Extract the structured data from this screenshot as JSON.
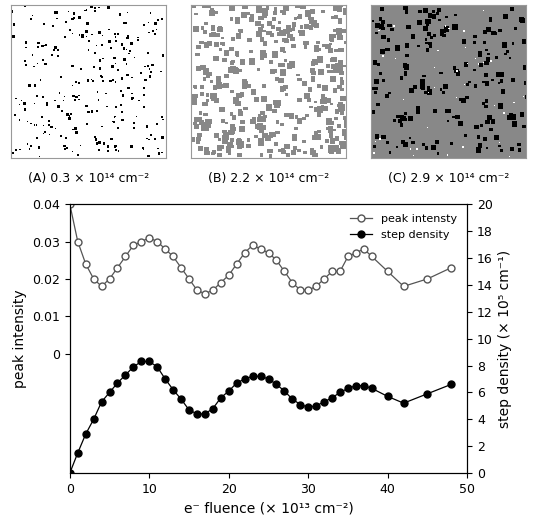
{
  "panels": [
    {
      "label": "(A) 0.3 × 10¹⁴ cm⁻²"
    },
    {
      "label": "(B) 2.2 × 10¹⁴ cm⁻²"
    },
    {
      "label": "(C) 2.9 × 10¹⁴ cm⁻²"
    }
  ],
  "chart_data": {
    "type": "line",
    "x_label": "e⁻ fluence (× 10¹³ cm⁻²)",
    "y_label": "peak intensity",
    "y2_label": "step density (× 10⁵ cm⁻¹)",
    "x": [
      0,
      1,
      2,
      3,
      4,
      5,
      6,
      7,
      8,
      9,
      10,
      11,
      12,
      13,
      14,
      15,
      16,
      17,
      18,
      19,
      20,
      21,
      22,
      23,
      24,
      25,
      26,
      27,
      28,
      29,
      30,
      31,
      32,
      33,
      34,
      35,
      36,
      37,
      38,
      40,
      42,
      45,
      48
    ],
    "series": [
      {
        "name": "peak intensty",
        "color": "#555555",
        "marker": "open_circle",
        "values": [
          0.04,
          0.03,
          0.024,
          0.02,
          0.018,
          0.02,
          0.023,
          0.026,
          0.029,
          0.03,
          0.031,
          0.03,
          0.028,
          0.026,
          0.023,
          0.02,
          0.017,
          0.016,
          0.017,
          0.019,
          0.021,
          0.024,
          0.027,
          0.029,
          0.028,
          0.027,
          0.025,
          0.022,
          0.019,
          0.017,
          0.017,
          0.018,
          0.02,
          0.022,
          0.022,
          0.026,
          0.027,
          0.028,
          0.026,
          0.022,
          0.018,
          0.02,
          0.023
        ]
      },
      {
        "name": "step density",
        "color": "#000000",
        "marker": "circle",
        "axis": "y2",
        "values": [
          0,
          1.5,
          2.9,
          4,
          5.3,
          6,
          6.7,
          7.3,
          7.9,
          8.3,
          8.3,
          7.9,
          7,
          6.2,
          5.5,
          4.7,
          4.4,
          4.4,
          4.8,
          5.6,
          6.1,
          6.7,
          7,
          7.2,
          7.2,
          7,
          6.6,
          6.1,
          5.5,
          5.1,
          4.9,
          5,
          5.3,
          5.6,
          6,
          6.3,
          6.5,
          6.5,
          6.3,
          5.7,
          5.2,
          5.9,
          6.6
        ]
      }
    ],
    "xlim": [
      0,
      50
    ],
    "xticks": [
      0,
      10,
      20,
      30,
      40,
      50
    ],
    "ylim": [
      -0.032,
      0.04
    ],
    "yticks": [
      0,
      0.01,
      0.02,
      0.03,
      0.04
    ],
    "y2lim": [
      0,
      20
    ],
    "y2ticks": [
      0,
      2,
      4,
      6,
      8,
      10,
      12,
      14,
      16,
      18,
      20
    ],
    "legend": "upper right",
    "grid": false
  }
}
